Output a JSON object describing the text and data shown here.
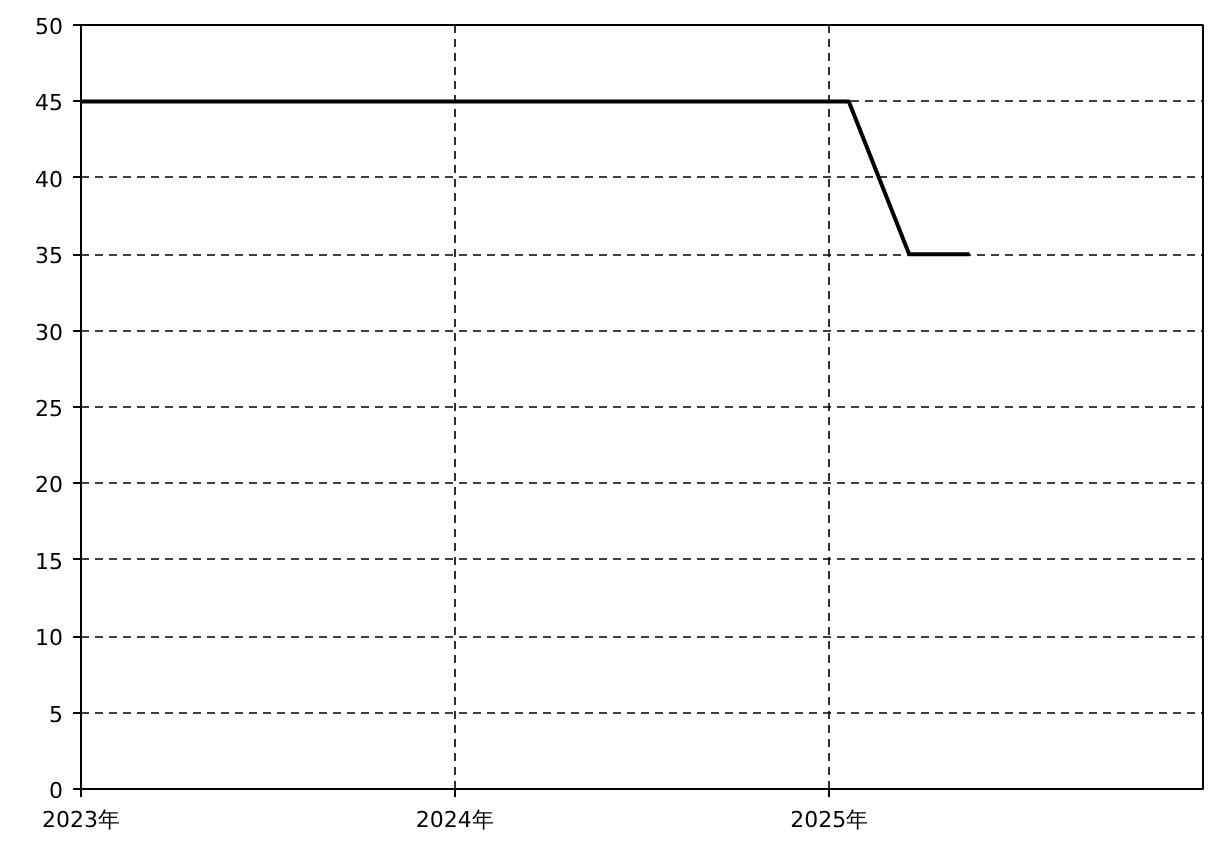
{
  "chart_data": {
    "type": "line",
    "x": [
      "2023-01-01",
      "2025-01-20",
      "2025-03-20",
      "2025-05-18"
    ],
    "series": [
      {
        "color": "#000000",
        "values": [
          45,
          45,
          35,
          35
        ]
      }
    ],
    "xlim": [
      "2023-01-01",
      "2026-01-01"
    ],
    "xticks": [
      {
        "value": "2023-01-01",
        "label": "2023年"
      },
      {
        "value": "2024-01-01",
        "label": "2024年"
      },
      {
        "value": "2025-01-01",
        "label": "2025年"
      }
    ],
    "ylim": [
      0,
      50
    ],
    "yticks": [
      0,
      5,
      10,
      15,
      20,
      25,
      30,
      35,
      40,
      45,
      50
    ],
    "grid": true,
    "line_style": "solid",
    "marker": "none"
  }
}
